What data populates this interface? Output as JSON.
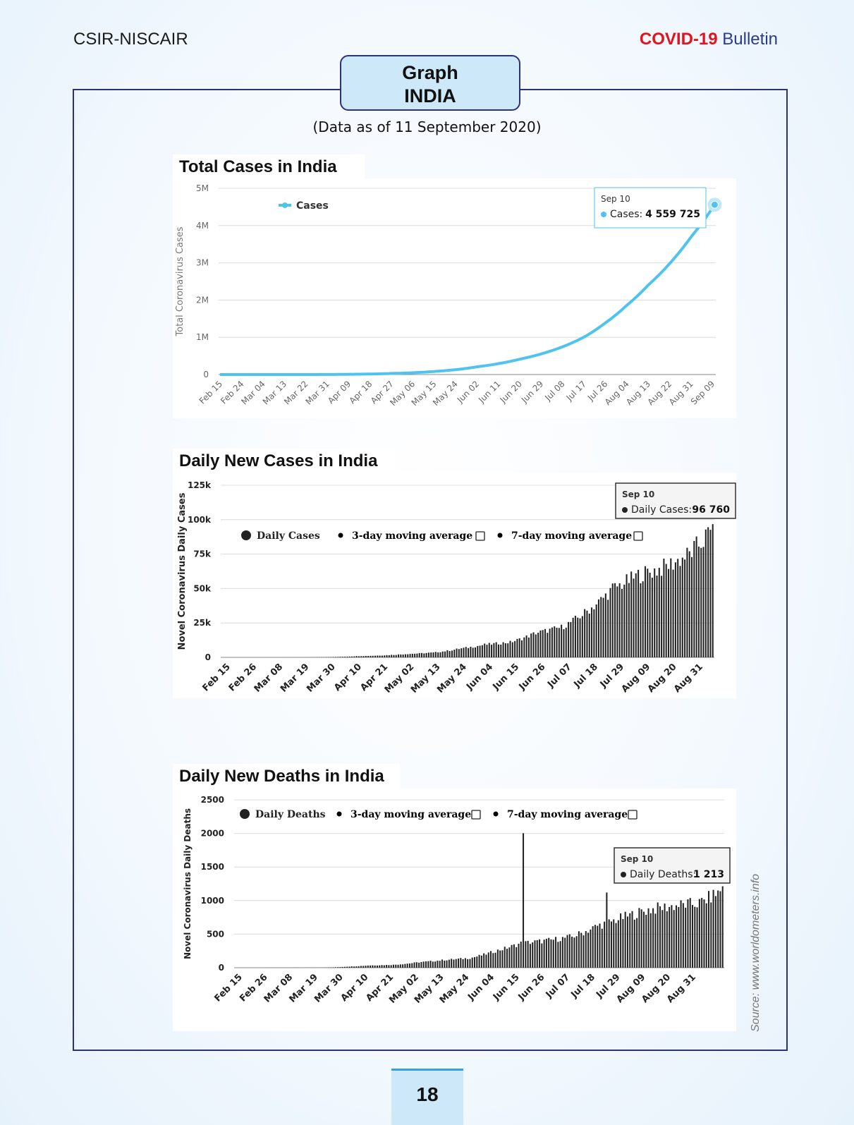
{
  "header": {
    "left": "CSIR-NISCAIR",
    "right_red": "COVID-19",
    "right_blue": "Bulletin"
  },
  "title_box": {
    "line1": "Graph",
    "line2": "INDIA"
  },
  "as_of": "(Data as of 11 September 2020)",
  "source": "Source: www.worldometers.info",
  "page_number": "18",
  "colors": {
    "frame": "#2d3178",
    "title_box": "#cde8f8",
    "cases_line": "#4fc3ef",
    "bars": "#222222",
    "red": "#e0141e",
    "blue": "#2b3a8f"
  },
  "chart_data": [
    {
      "type": "line",
      "title": "Total Cases in India",
      "ylabel": "Total Coronavirus Cases",
      "ylim": [
        0,
        5000000
      ],
      "y_ticks": [
        "0",
        "1M",
        "2M",
        "3M",
        "4M",
        "5M"
      ],
      "x_ticks": [
        "Feb 15",
        "Feb 24",
        "Mar 04",
        "Mar 13",
        "Mar 22",
        "Mar 31",
        "Apr 09",
        "Apr 18",
        "Apr 27",
        "May 06",
        "May 15",
        "May 24",
        "Jun 02",
        "Jun 11",
        "Jun 20",
        "Jun 29",
        "Jul 08",
        "Jul 17",
        "Jul 26",
        "Aug 04",
        "Aug 13",
        "Aug 22",
        "Aug 31",
        "Sep 09"
      ],
      "legend": [
        "Cases"
      ],
      "legend_position": "top-left",
      "grid": true,
      "series": [
        {
          "name": "Cases",
          "x": [
            "Feb 15",
            "Mar 22",
            "Apr 09",
            "Apr 27",
            "May 15",
            "Jun 02",
            "Jun 20",
            "Jul 08",
            "Jul 17",
            "Jul 26",
            "Aug 04",
            "Aug 13",
            "Aug 22",
            "Aug 31",
            "Sep 10"
          ],
          "values": [
            3,
            400,
            6700,
            29400,
            82000,
            207000,
            411000,
            743000,
            1004000,
            1385000,
            1856000,
            2397000,
            2973000,
            3687000,
            4559725
          ]
        }
      ],
      "tooltip": {
        "date": "Sep 10",
        "label": "Cases:",
        "value": "4 559 725"
      }
    },
    {
      "type": "bar",
      "title": "Daily New Cases in India",
      "ylabel": "Novel Coronavirus Daily Cases",
      "ylim": [
        0,
        125000
      ],
      "y_ticks": [
        "0",
        "25k",
        "50k",
        "75k",
        "100k",
        "125k"
      ],
      "x_ticks": [
        "Feb 15",
        "Feb 26",
        "Mar 08",
        "Mar 19",
        "Mar 30",
        "Apr 10",
        "Apr 21",
        "May 02",
        "May 13",
        "May 24",
        "Jun 04",
        "Jun 15",
        "Jun 26",
        "Jul 07",
        "Jul 18",
        "Jul 29",
        "Aug 09",
        "Aug 20",
        "Aug 31"
      ],
      "legend": [
        "Daily Cases",
        "3-day moving average",
        "7-day moving average"
      ],
      "legend_position": "top-left",
      "grid": true,
      "series": [
        {
          "name": "Daily Cases",
          "x_range": [
            "Feb 15",
            "Sep 10"
          ],
          "anchors": [
            [
              "Feb 15",
              0
            ],
            [
              "Mar 15",
              30
            ],
            [
              "Mar 31",
              300
            ],
            [
              "Apr 10",
              900
            ],
            [
              "Apr 21",
              1500
            ],
            [
              "May 02",
              2600
            ],
            [
              "May 13",
              3600
            ],
            [
              "May 24",
              6500
            ],
            [
              "Jun 04",
              9600
            ],
            [
              "Jun 15",
              11500
            ],
            [
              "Jun 26",
              18500
            ],
            [
              "Jul 07",
              22800
            ],
            [
              "Jul 18",
              35000
            ],
            [
              "Jul 29",
              52000
            ],
            [
              "Aug 09",
              62000
            ],
            [
              "Aug 20",
              68000
            ],
            [
              "Aug 31",
              78000
            ],
            [
              "Sep 05",
              87000
            ],
            [
              "Sep 10",
              96760
            ]
          ]
        }
      ],
      "tooltip": {
        "date": "Sep 10",
        "label": "Daily Cases:",
        "value": "96 760"
      }
    },
    {
      "type": "bar",
      "title": "Daily New Deaths in India",
      "ylabel": "Novel Coronavirus Daily Deaths",
      "ylim": [
        0,
        2500
      ],
      "y_ticks": [
        "0",
        "500",
        "1000",
        "1500",
        "2000",
        "2500"
      ],
      "x_ticks": [
        "Feb 15",
        "Feb 26",
        "Mar 08",
        "Mar 19",
        "Mar 30",
        "Apr 10",
        "Apr 21",
        "May 02",
        "May 13",
        "May 24",
        "Jun 04",
        "Jun 15",
        "Jun 26",
        "Jul 07",
        "Jul 18",
        "Jul 29",
        "Aug 09",
        "Aug 20",
        "Aug 31"
      ],
      "legend": [
        "Daily Deaths",
        "3-day moving average",
        "7-day moving average"
      ],
      "legend_position": "top-left",
      "grid": true,
      "series": [
        {
          "name": "Daily Deaths",
          "x_range": [
            "Feb 15",
            "Sep 10"
          ],
          "anchors": [
            [
              "Feb 15",
              0
            ],
            [
              "Mar 20",
              2
            ],
            [
              "Mar 31",
              15
            ],
            [
              "Apr 10",
              35
            ],
            [
              "Apr 21",
              45
            ],
            [
              "May 02",
              85
            ],
            [
              "May 13",
              120
            ],
            [
              "May 24",
              150
            ],
            [
              "Jun 04",
              260
            ],
            [
              "Jun 15",
              380
            ],
            [
              "Jun 26",
              420
            ],
            [
              "Jul 07",
              480
            ],
            [
              "Jul 18",
              650
            ],
            [
              "Jul 29",
              780
            ],
            [
              "Aug 09",
              900
            ],
            [
              "Aug 20",
              960
            ],
            [
              "Aug 31",
              1000
            ],
            [
              "Sep 10",
              1213
            ]
          ],
          "spikes": [
            [
              "Jun 16",
              2003
            ],
            [
              "Jul 22",
              1120
            ]
          ]
        }
      ],
      "tooltip": {
        "date": "Sep 10",
        "label": "Daily Deaths:",
        "value": "1 213"
      }
    }
  ]
}
